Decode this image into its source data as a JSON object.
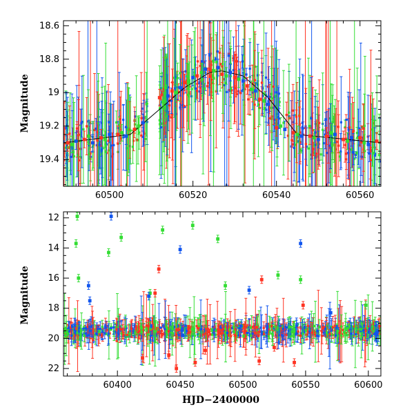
{
  "colors": {
    "green": "#33dd33",
    "blue": "#1155ee",
    "red": "#ff3322",
    "model": "#000000"
  },
  "chart_data": [
    {
      "type": "scatter",
      "panel": "top",
      "title": "",
      "xlabel": "",
      "ylabel": "Magnitude",
      "xlim": [
        60489,
        60565
      ],
      "ylim": [
        19.56,
        18.57
      ],
      "y_inverted": true,
      "xticks": [
        60500,
        60520,
        60540,
        60560
      ],
      "yticks": [
        18.6,
        18.8,
        19,
        19.2,
        19.4
      ],
      "series": [
        {
          "color": "green",
          "x": [
            60491,
            60495,
            60499,
            60503,
            60507,
            60513,
            60516,
            60519,
            60522,
            60525,
            60528,
            60531,
            60534,
            60537,
            60541,
            60545,
            60549,
            60553,
            60557,
            60561
          ],
          "y": [
            19.31,
            19.26,
            19.28,
            19.24,
            19.2,
            19.05,
            19.0,
            18.93,
            18.88,
            18.87,
            18.9,
            18.92,
            18.98,
            19.05,
            19.2,
            19.25,
            19.27,
            19.24,
            19.29,
            19.3
          ]
        },
        {
          "color": "blue",
          "x": [
            60492,
            60496,
            60500,
            60504,
            60508,
            60514,
            60517,
            60520,
            60523,
            60526,
            60529,
            60532,
            60535,
            60538,
            60542,
            60546,
            60550,
            60554,
            60558,
            60562
          ],
          "y": [
            19.29,
            19.3,
            19.25,
            19.26,
            19.18,
            19.02,
            18.97,
            18.91,
            18.86,
            18.85,
            18.88,
            18.93,
            18.99,
            19.07,
            19.22,
            19.26,
            19.28,
            19.25,
            19.27,
            19.31
          ]
        },
        {
          "color": "red",
          "x": [
            60490,
            60494,
            60498,
            60502,
            60506,
            60512,
            60515,
            60518,
            60521,
            60524,
            60527,
            60530,
            60533,
            60536,
            60540,
            60544,
            60548,
            60552,
            60556,
            60560,
            60564
          ],
          "y": [
            19.3,
            19.28,
            19.27,
            19.25,
            19.22,
            19.03,
            18.99,
            18.94,
            18.9,
            18.86,
            18.89,
            18.91,
            18.96,
            19.04,
            19.21,
            19.24,
            19.26,
            19.26,
            19.28,
            19.27,
            19.29
          ]
        }
      ],
      "model": {
        "color": "model",
        "x": [
          60489,
          60505,
          60512,
          60518,
          60524,
          60527,
          60532,
          60538,
          60545,
          60565
        ],
        "y": [
          19.3,
          19.25,
          19.1,
          18.97,
          18.88,
          18.87,
          18.9,
          19.03,
          19.25,
          19.3
        ]
      }
    },
    {
      "type": "scatter",
      "panel": "bottom",
      "title": "",
      "xlabel": "HJD−2400000",
      "ylabel": "Magnitude",
      "xlim": [
        60357,
        60610
      ],
      "ylim": [
        22.5,
        11.6
      ],
      "y_inverted": true,
      "xticks": [
        60400,
        60450,
        60500,
        60550,
        60600
      ],
      "yticks": [
        12,
        14,
        16,
        18,
        20,
        22
      ],
      "series": [
        {
          "color": "green",
          "x": [
            60368,
            60367,
            60369,
            60393,
            60403,
            60426,
            60436,
            60460,
            60480,
            60486,
            60528,
            60546,
            60598
          ],
          "y": [
            11.9,
            13.7,
            16.0,
            14.3,
            13.3,
            17.0,
            12.8,
            12.5,
            13.4,
            16.5,
            15.8,
            16.1,
            17.8
          ]
        },
        {
          "color": "blue",
          "x": [
            60377,
            60395,
            60450,
            60546,
            60378,
            60425,
            60505,
            60570
          ],
          "y": [
            16.5,
            11.9,
            14.1,
            13.7,
            17.5,
            17.2,
            16.8,
            18.3
          ]
        },
        {
          "color": "red",
          "x": [
            60420,
            60433,
            60441,
            60447,
            60462,
            60513,
            60515,
            60541,
            60548,
            60430,
            60470,
            60525
          ],
          "y": [
            21.3,
            15.4,
            21.1,
            22.0,
            21.6,
            21.5,
            16.1,
            21.6,
            17.8,
            17.0,
            20.8,
            20.6
          ]
        }
      ]
    }
  ]
}
